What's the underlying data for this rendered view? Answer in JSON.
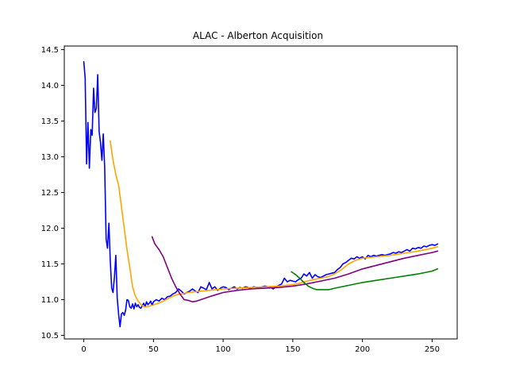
{
  "chart_data": {
    "type": "line",
    "title": "ALAC - Alberton Acquisition",
    "xlabel": "",
    "ylabel": "",
    "xlim": [
      -14,
      268
    ],
    "ylim": [
      10.45,
      14.55
    ],
    "x_ticks": [
      0,
      50,
      100,
      150,
      200,
      250
    ],
    "x_tick_labels": [
      "0",
      "50",
      "100",
      "150",
      "200",
      "250"
    ],
    "y_ticks": [
      10.5,
      11.0,
      11.5,
      12.0,
      12.5,
      13.0,
      13.5,
      14.0,
      14.5
    ],
    "y_tick_labels": [
      "10.5",
      "11.0",
      "11.5",
      "12.0",
      "12.5",
      "13.0",
      "13.5",
      "14.0",
      "14.5"
    ],
    "grid": false,
    "series": [
      {
        "color": "#0000ff",
        "x": [
          0,
          1,
          2,
          3,
          4,
          5,
          6,
          7,
          8,
          9,
          10,
          11,
          12,
          13,
          14,
          15,
          16,
          17,
          18,
          19,
          20,
          21,
          22,
          23,
          24,
          25,
          26,
          27,
          28,
          29,
          30,
          31,
          32,
          33,
          34,
          35,
          36,
          37,
          38,
          39,
          40,
          41,
          42,
          43,
          44,
          45,
          46,
          47,
          48,
          49,
          50,
          52,
          54,
          56,
          58,
          60,
          62,
          64,
          66,
          68,
          70,
          72,
          74,
          76,
          78,
          80,
          82,
          84,
          86,
          88,
          90,
          92,
          94,
          96,
          98,
          100,
          102,
          104,
          106,
          108,
          110,
          112,
          114,
          116,
          118,
          120,
          122,
          124,
          126,
          128,
          130,
          132,
          134,
          136,
          138,
          140,
          142,
          144,
          146,
          148,
          150,
          152,
          154,
          156,
          158,
          160,
          162,
          164,
          166,
          168,
          170,
          172,
          174,
          176,
          178,
          180,
          182,
          184,
          186,
          188,
          190,
          192,
          194,
          196,
          198,
          200,
          202,
          204,
          206,
          208,
          210,
          212,
          214,
          216,
          218,
          220,
          222,
          224,
          226,
          228,
          230,
          232,
          234,
          236,
          238,
          240,
          242,
          244,
          246,
          248,
          250,
          252,
          254
        ],
        "y": [
          14.33,
          14.1,
          12.9,
          13.48,
          12.84,
          13.38,
          13.3,
          13.96,
          13.62,
          13.68,
          14.15,
          13.35,
          13.2,
          12.95,
          13.32,
          12.85,
          11.85,
          11.72,
          12.07,
          11.55,
          11.16,
          11.1,
          11.32,
          11.62,
          11.02,
          10.79,
          10.62,
          10.8,
          10.82,
          10.78,
          10.85,
          11.0,
          10.99,
          10.9,
          10.88,
          10.94,
          10.87,
          10.95,
          10.9,
          10.93,
          10.89,
          10.88,
          10.92,
          10.95,
          10.9,
          10.97,
          10.93,
          10.95,
          10.98,
          10.92,
          10.97,
          11.0,
          10.98,
          11.02,
          11.0,
          11.04,
          11.05,
          11.08,
          11.1,
          11.15,
          11.12,
          11.08,
          11.1,
          11.12,
          11.15,
          11.12,
          11.1,
          11.18,
          11.16,
          11.14,
          11.24,
          11.15,
          11.18,
          11.13,
          11.16,
          11.18,
          11.17,
          11.14,
          11.16,
          11.18,
          11.15,
          11.17,
          11.16,
          11.18,
          11.17,
          11.16,
          11.18,
          11.17,
          11.16,
          11.18,
          11.19,
          11.18,
          11.17,
          11.15,
          11.18,
          11.2,
          11.22,
          11.3,
          11.25,
          11.27,
          11.26,
          11.25,
          11.28,
          11.3,
          11.36,
          11.33,
          11.38,
          11.3,
          11.35,
          11.32,
          11.31,
          11.33,
          11.35,
          11.36,
          11.37,
          11.38,
          11.42,
          11.45,
          11.5,
          11.52,
          11.55,
          11.58,
          11.57,
          11.6,
          11.58,
          11.6,
          11.57,
          11.62,
          11.6,
          11.62,
          11.61,
          11.62,
          11.63,
          11.62,
          11.63,
          11.64,
          11.66,
          11.65,
          11.67,
          11.66,
          11.68,
          11.7,
          11.68,
          11.72,
          11.71,
          11.73,
          11.72,
          11.75,
          11.74,
          11.76,
          11.77,
          11.76,
          11.78
        ]
      },
      {
        "color": "#ffa500",
        "x": [
          19,
          21,
          23,
          25,
          27,
          29,
          31,
          33,
          35,
          37,
          39,
          41,
          43,
          45,
          47,
          49,
          52,
          55,
          58,
          61,
          64,
          67,
          70,
          75,
          80,
          85,
          90,
          95,
          100,
          110,
          120,
          130,
          140,
          150,
          155,
          160,
          165,
          170,
          175,
          180,
          185,
          190,
          195,
          200,
          210,
          220,
          230,
          240,
          250,
          254
        ],
        "y": [
          13.22,
          12.95,
          12.75,
          12.6,
          12.3,
          12.0,
          11.7,
          11.45,
          11.18,
          11.05,
          10.98,
          10.93,
          10.9,
          10.9,
          10.91,
          10.92,
          10.94,
          10.96,
          10.99,
          11.02,
          11.05,
          11.07,
          11.08,
          11.1,
          11.11,
          11.12,
          11.13,
          11.14,
          11.15,
          11.16,
          11.17,
          11.18,
          11.19,
          11.21,
          11.23,
          11.26,
          11.28,
          11.3,
          11.32,
          11.36,
          11.42,
          11.5,
          11.55,
          11.58,
          11.6,
          11.62,
          11.65,
          11.68,
          11.72,
          11.74
        ]
      },
      {
        "color": "#800080",
        "x": [
          49,
          51,
          54,
          57,
          60,
          63,
          66,
          69,
          72,
          75,
          78,
          81,
          84,
          87,
          90,
          95,
          100,
          110,
          120,
          130,
          140,
          150,
          160,
          170,
          180,
          190,
          200,
          210,
          220,
          230,
          240,
          250,
          254
        ],
        "y": [
          11.88,
          11.78,
          11.7,
          11.6,
          11.45,
          11.3,
          11.18,
          11.08,
          11.0,
          10.99,
          10.97,
          10.98,
          11.0,
          11.02,
          11.04,
          11.07,
          11.1,
          11.13,
          11.15,
          11.16,
          11.17,
          11.19,
          11.22,
          11.26,
          11.3,
          11.36,
          11.43,
          11.48,
          11.53,
          11.58,
          11.62,
          11.66,
          11.68
        ]
      },
      {
        "color": "#008000",
        "x": [
          149,
          152,
          155,
          158,
          161,
          164,
          167,
          170,
          173,
          176,
          180,
          190,
          200,
          210,
          220,
          230,
          240,
          250,
          254
        ],
        "y": [
          11.39,
          11.35,
          11.3,
          11.24,
          11.19,
          11.16,
          11.14,
          11.14,
          11.14,
          11.14,
          11.16,
          11.2,
          11.24,
          11.27,
          11.3,
          11.33,
          11.36,
          11.4,
          11.43
        ]
      }
    ]
  }
}
